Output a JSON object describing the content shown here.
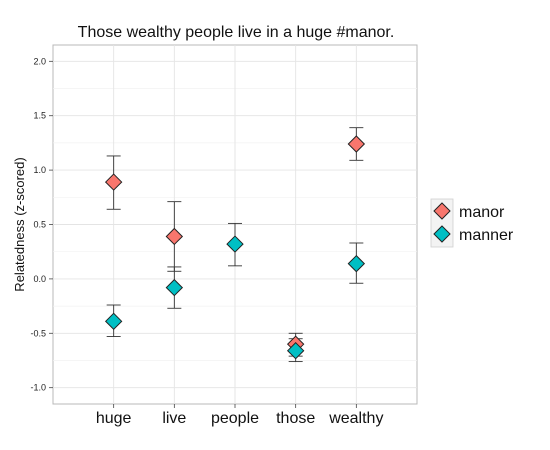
{
  "chart_data": {
    "type": "scatter",
    "title": "Those wealthy people live in a huge #manor.",
    "xlabel": "",
    "ylabel": "Relatedness (z-scored)",
    "categories": [
      "huge",
      "live",
      "people",
      "those",
      "wealthy"
    ],
    "ylim": [
      -1.15,
      2.15
    ],
    "yticks": [
      -1.0,
      -0.5,
      0.0,
      0.5,
      1.0,
      1.5,
      2.0
    ],
    "ytick_labels": [
      "-1.0",
      "-0.5",
      "0.0",
      "0.5",
      "1.0",
      "1.5",
      "2.0"
    ],
    "grid": true,
    "legend_position": "right",
    "series": [
      {
        "name": "manor",
        "color": "#F8766D",
        "points": [
          {
            "x": "huge",
            "y": 0.89,
            "lo": 0.64,
            "hi": 1.13
          },
          {
            "x": "live",
            "y": 0.39,
            "lo": 0.07,
            "hi": 0.71
          },
          {
            "x": "those",
            "y": -0.6,
            "lo": -0.71,
            "hi": -0.5
          },
          {
            "x": "wealthy",
            "y": 1.24,
            "lo": 1.09,
            "hi": 1.39
          }
        ]
      },
      {
        "name": "manner",
        "color": "#00BFC4",
        "points": [
          {
            "x": "huge",
            "y": -0.39,
            "lo": -0.53,
            "hi": -0.24
          },
          {
            "x": "live",
            "y": -0.08,
            "lo": -0.27,
            "hi": 0.11
          },
          {
            "x": "people",
            "y": 0.32,
            "lo": 0.12,
            "hi": 0.51
          },
          {
            "x": "those",
            "y": -0.66,
            "lo": -0.76,
            "hi": -0.55
          },
          {
            "x": "wealthy",
            "y": 0.14,
            "lo": -0.04,
            "hi": 0.33
          }
        ]
      }
    ]
  }
}
